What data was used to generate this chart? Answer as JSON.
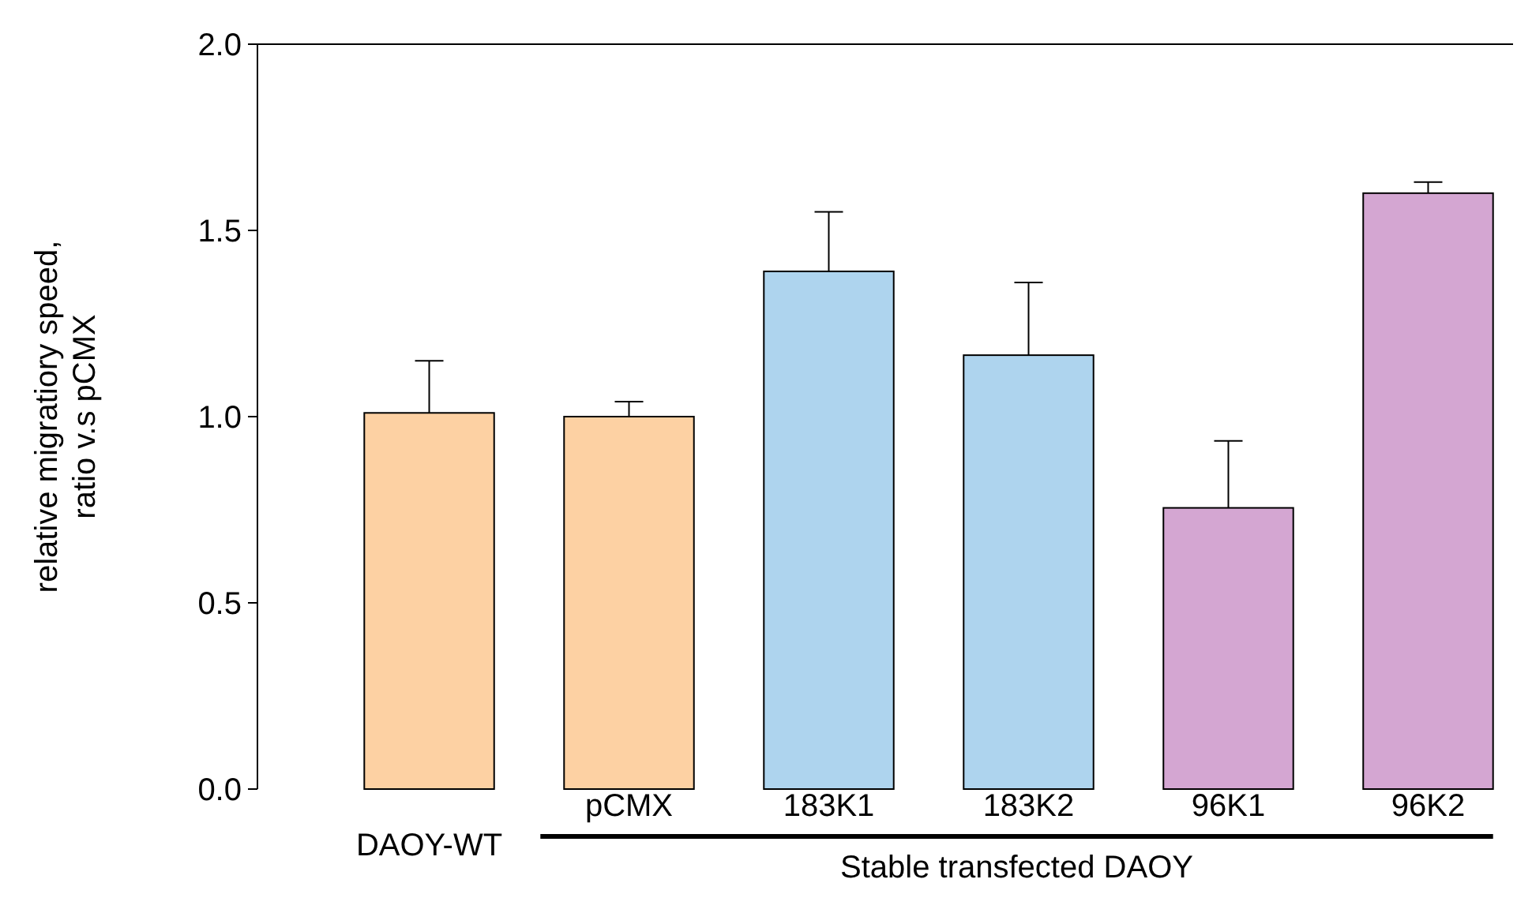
{
  "chart_data": {
    "type": "bar",
    "ylabel": "relative migratiory speed,\nratio v.s pCMX",
    "categories": [
      "DAOY-WT",
      "pCMX",
      "183K1",
      "183K2",
      "96K1",
      "96K2"
    ],
    "values": [
      1.01,
      1.0,
      1.39,
      1.165,
      0.755,
      1.6
    ],
    "colors": [
      "#fdd1a3",
      "#fdd1a3",
      "#aed4ee",
      "#aed4ee",
      "#d4a6d2",
      "#d4a6d2"
    ],
    "errors": [
      [
        1.01,
        1.15
      ],
      [
        1.0,
        1.04
      ],
      [
        1.39,
        1.55
      ],
      [
        1.165,
        1.36
      ],
      [
        0.755,
        0.935
      ],
      [
        1.6,
        1.63
      ]
    ],
    "ylim": [
      0,
      2
    ],
    "yticks": [
      {
        "value": 0,
        "label": "0.0"
      },
      {
        "value": 0.5,
        "label": "0.5"
      },
      {
        "value": 1,
        "label": "1.0"
      },
      {
        "value": 1.5,
        "label": "1.5"
      },
      {
        "value": 2,
        "label": "2.0"
      }
    ],
    "grid": false,
    "annotations": [
      "Stable transfected DAOY"
    ]
  }
}
